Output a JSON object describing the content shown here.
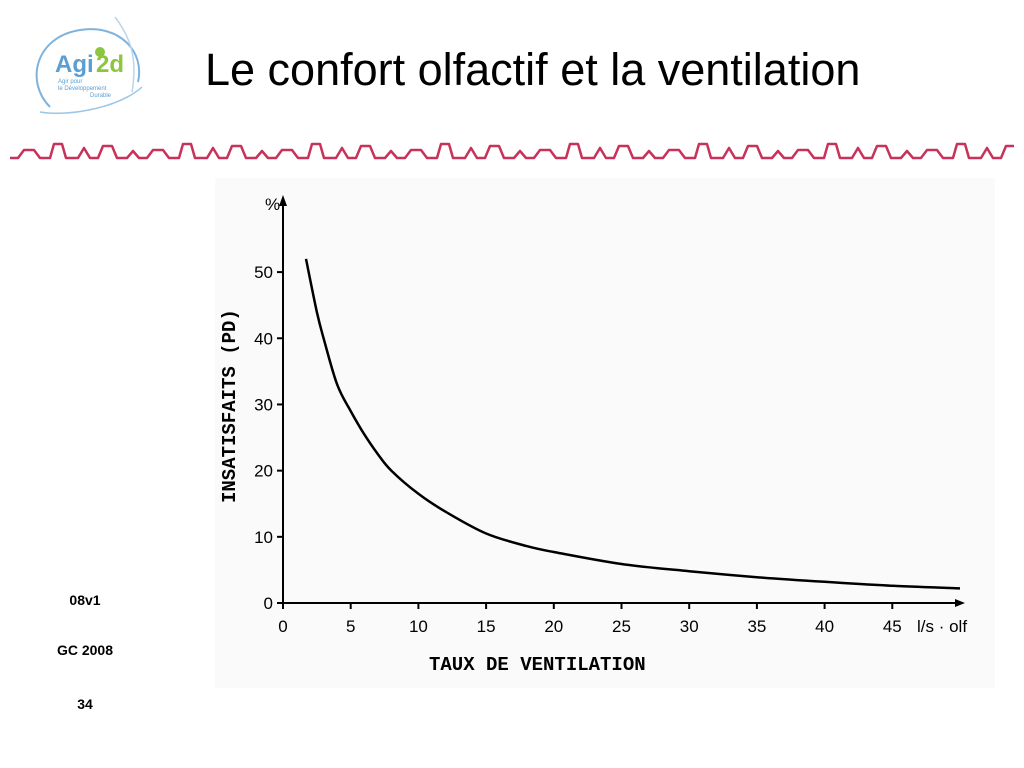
{
  "slide": {
    "title": "Le confort olfactif et la ventilation",
    "logo": {
      "brand": "Agi2d",
      "tagline_1": "Agir pour",
      "tagline_2": "le Développement",
      "tagline_3": "Durable",
      "brand_color": "#5a9fd4",
      "accent_color": "#8cc63f"
    },
    "banner_color": "#c8325a",
    "meta": {
      "version": "08v1",
      "author": "GC 2008",
      "page": "34"
    }
  },
  "chart_data": {
    "type": "line",
    "title": "",
    "xlabel": "TAUX DE VENTILATION",
    "ylabel": "INSATISFAITS (PD)",
    "x_unit": "l/s · olf",
    "y_unit": "%",
    "xlim": [
      0,
      50
    ],
    "ylim": [
      0,
      55
    ],
    "x_ticks": [
      0,
      5,
      10,
      15,
      20,
      25,
      30,
      35,
      40,
      45
    ],
    "y_ticks": [
      0,
      10,
      20,
      30,
      40,
      50
    ],
    "grid": false,
    "series": [
      {
        "x": [
          1.7,
          2.5,
          3,
          4,
          5,
          6,
          7,
          8,
          10,
          12,
          15,
          18,
          20,
          25,
          30,
          35,
          40,
          45,
          50
        ],
        "y": [
          52,
          44,
          40,
          33,
          29,
          25.5,
          22.5,
          20,
          16.5,
          13.8,
          10.5,
          8.6,
          7.7,
          5.9,
          4.8,
          3.9,
          3.2,
          2.6,
          2.2
        ]
      }
    ]
  }
}
